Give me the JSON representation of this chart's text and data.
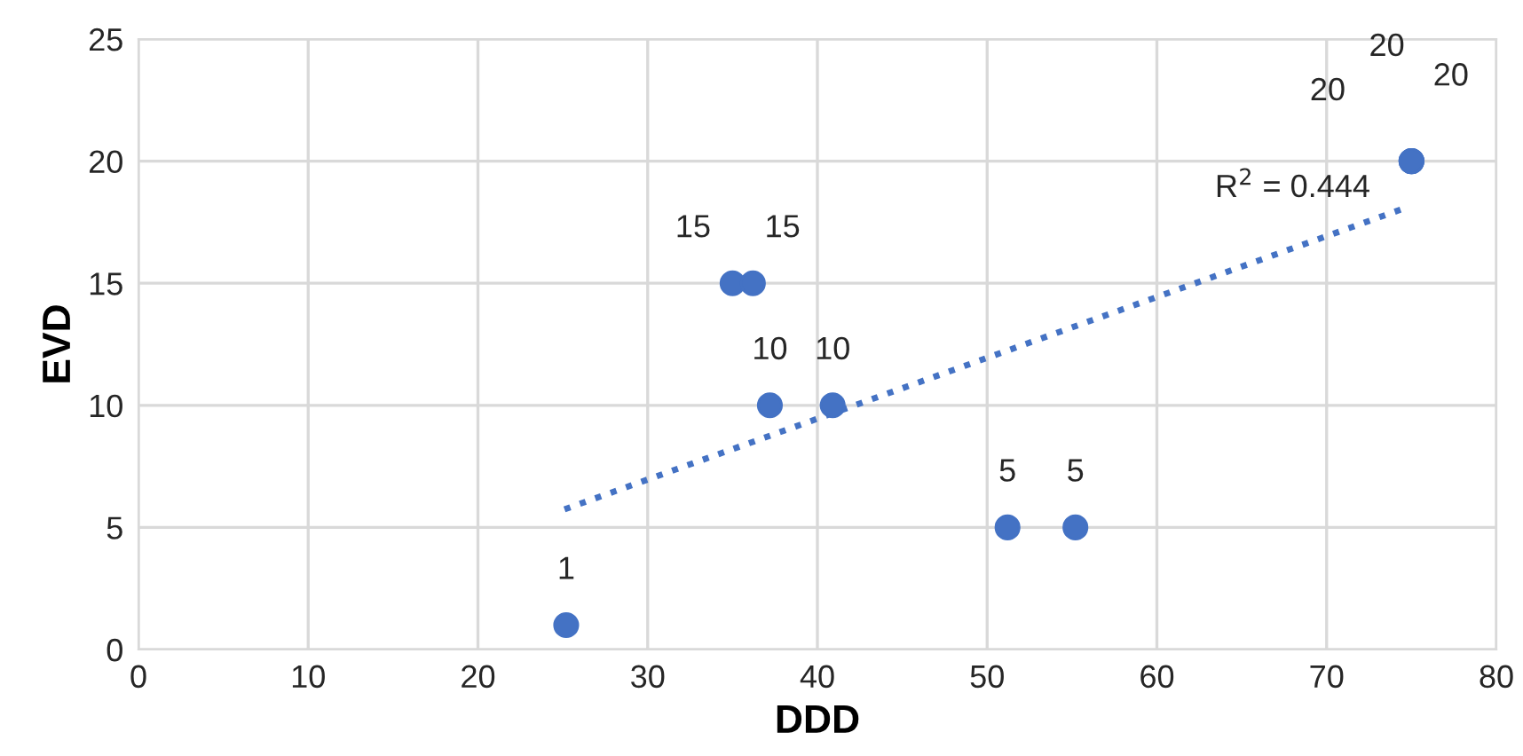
{
  "chart_data": {
    "type": "scatter",
    "xlabel": "DDD",
    "ylabel": "EVD",
    "xlim": [
      0,
      80
    ],
    "xticks": [
      0,
      10,
      20,
      30,
      40,
      50,
      60,
      70,
      80
    ],
    "ylim": [
      0,
      25
    ],
    "yticks": [
      0,
      5,
      10,
      15,
      20,
      25
    ],
    "grid": true,
    "series": [
      {
        "color": "#4472c4",
        "marker": "circle",
        "x": [
          25.2,
          35.0,
          36.2,
          37.2,
          40.9,
          51.2,
          55.2,
          75.0,
          75.0,
          75.0
        ],
        "values": [
          1,
          15,
          15,
          10,
          10,
          5,
          5,
          20,
          20,
          20
        ],
        "value_labels": [
          "1",
          "15",
          "15",
          "10",
          "10",
          "5",
          "5",
          "20",
          "20",
          "20"
        ]
      },
      {
        "type": "line",
        "color": "#4472c4",
        "line_style": "dotted",
        "marker": "none",
        "x": [
          25.1,
          74.7
        ],
        "values": [
          5.74,
          18.1
        ]
      }
    ],
    "annotations": [
      "R$^{2}$ = 0.444"
    ]
  }
}
